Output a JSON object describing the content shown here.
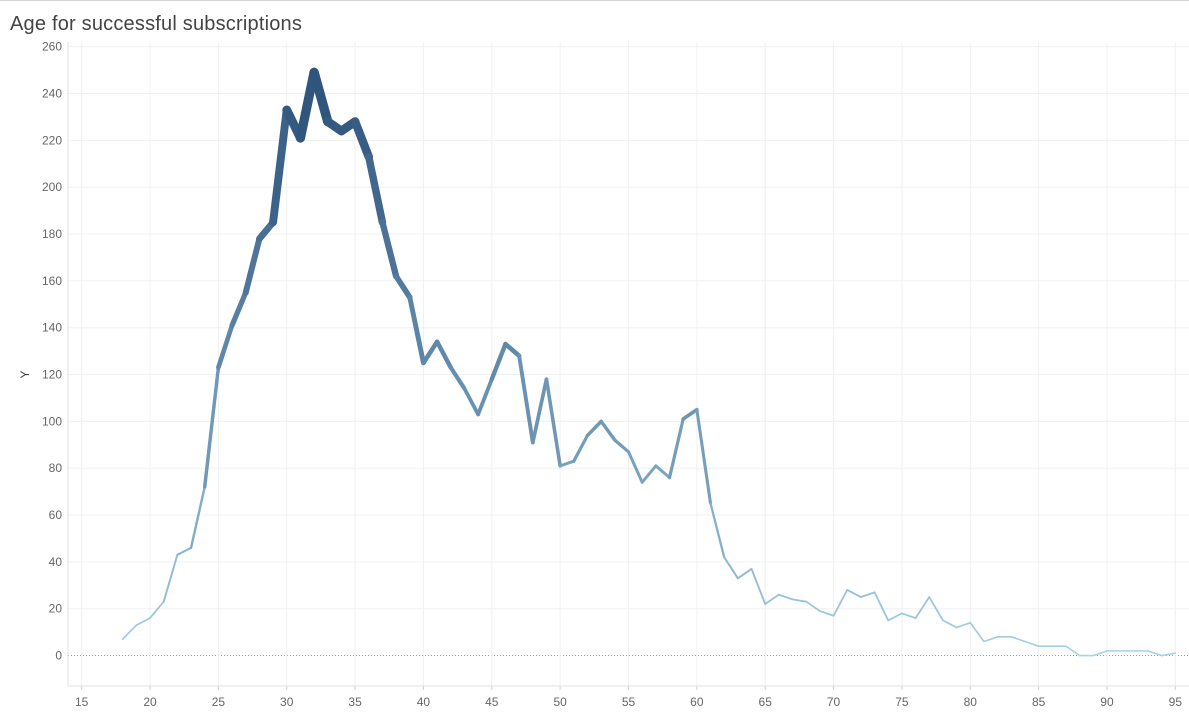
{
  "title": "Age for successful subscriptions",
  "chart_data": {
    "type": "line",
    "title": "Age for successful subscriptions",
    "xlabel": "",
    "ylabel": "Y",
    "xlim": [
      14,
      96
    ],
    "ylim": [
      -13,
      262
    ],
    "x_ticks": [
      15,
      20,
      25,
      30,
      35,
      40,
      45,
      50,
      55,
      60,
      65,
      70,
      75,
      80,
      85,
      90,
      95
    ],
    "y_ticks": [
      0,
      20,
      40,
      60,
      80,
      100,
      120,
      140,
      160,
      180,
      200,
      220,
      240,
      260
    ],
    "grid": true,
    "line_width_and_color_scale_with_value": true,
    "color_light": "#a8d4ea",
    "color_dark": "#2b5079",
    "series": [
      {
        "x": [
          18,
          19,
          20,
          21,
          22,
          23,
          24,
          25,
          26,
          27,
          28,
          29,
          30,
          31,
          32,
          33,
          34,
          35,
          36,
          37,
          38,
          39,
          40,
          41,
          42,
          43,
          44,
          45,
          46,
          47,
          48,
          49,
          50,
          51,
          52,
          53,
          54,
          55,
          56,
          57,
          58,
          59,
          60,
          61,
          62,
          63,
          64,
          65,
          66,
          67,
          68,
          69,
          70,
          71,
          72,
          73,
          74,
          75,
          76,
          77,
          78,
          79,
          80,
          81,
          82,
          83,
          84,
          85,
          86,
          87,
          88,
          89,
          90,
          91,
          92,
          93,
          94,
          95
        ],
        "y": [
          7,
          13,
          16,
          23,
          43,
          46,
          72,
          123,
          141,
          155,
          178,
          185,
          233,
          221,
          249,
          228,
          224,
          228,
          213,
          185,
          162,
          153,
          125,
          134,
          123,
          114,
          103,
          118,
          133,
          128,
          91,
          118,
          81,
          83,
          94,
          100,
          92,
          87,
          74,
          81,
          76,
          101,
          105,
          65,
          42,
          33,
          37,
          22,
          26,
          24,
          23,
          19,
          17,
          28,
          25,
          27,
          15,
          18,
          16,
          25,
          15,
          12,
          14,
          6,
          8,
          8,
          6,
          4,
          4,
          4,
          0,
          0,
          2,
          2,
          2,
          2,
          0,
          1
        ]
      }
    ]
  }
}
